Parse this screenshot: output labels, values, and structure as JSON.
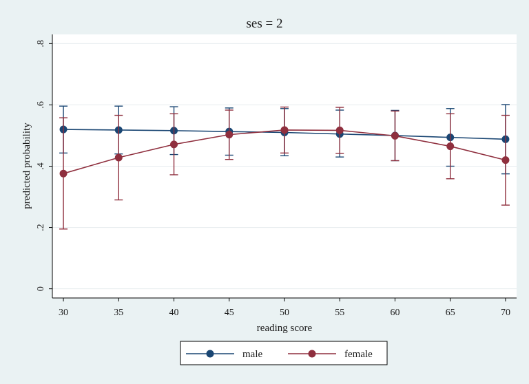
{
  "chart_data": {
    "type": "line",
    "title": "ses = 2",
    "xlabel": "reading score",
    "ylabel": "predicted probability",
    "x": [
      30,
      35,
      40,
      45,
      50,
      55,
      60,
      65,
      70
    ],
    "xlim": [
      29,
      71
    ],
    "ylim": [
      -0.03,
      0.83
    ],
    "xticks": [
      "30",
      "35",
      "40",
      "45",
      "50",
      "55",
      "60",
      "65",
      "70"
    ],
    "yticks": [
      {
        "value": 0,
        "label": "0"
      },
      {
        "value": 0.2,
        "label": ".2"
      },
      {
        "value": 0.4,
        "label": ".4"
      },
      {
        "value": 0.6,
        "label": ".6"
      },
      {
        "value": 0.8,
        "label": ".8"
      }
    ],
    "grid": true,
    "legend_position": "bottom",
    "series": [
      {
        "name": "male",
        "color": "#1a4673",
        "values": [
          0.52,
          0.518,
          0.516,
          0.513,
          0.51,
          0.505,
          0.5,
          0.494,
          0.488
        ],
        "lower": [
          0.443,
          0.44,
          0.438,
          0.436,
          0.434,
          0.43,
          0.418,
          0.4,
          0.375
        ],
        "upper": [
          0.596,
          0.596,
          0.594,
          0.59,
          0.588,
          0.583,
          0.582,
          0.588,
          0.601
        ]
      },
      {
        "name": "female",
        "color": "#8f2f3e",
        "values": [
          0.376,
          0.428,
          0.471,
          0.503,
          0.518,
          0.517,
          0.499,
          0.465,
          0.42
        ],
        "lower": [
          0.195,
          0.29,
          0.372,
          0.422,
          0.443,
          0.442,
          0.418,
          0.359,
          0.273
        ],
        "upper": [
          0.558,
          0.566,
          0.571,
          0.583,
          0.593,
          0.592,
          0.58,
          0.571,
          0.566
        ]
      }
    ]
  }
}
